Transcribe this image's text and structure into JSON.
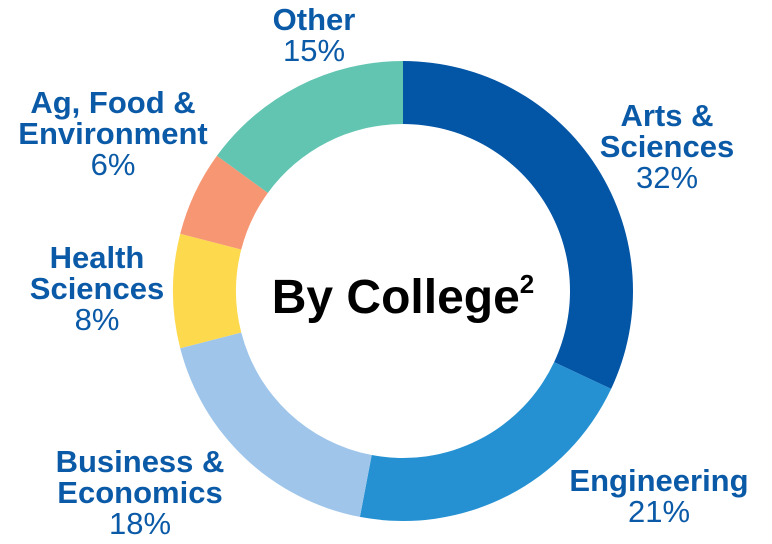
{
  "chart_data": {
    "type": "pie",
    "title": "By College",
    "title_superscript": "2",
    "donut": true,
    "start": "top, clockwise",
    "slices": [
      {
        "name_lines": [
          "Arts &",
          "Sciences"
        ],
        "value": 32,
        "label": "32%",
        "color": "#0355a6"
      },
      {
        "name_lines": [
          "Engineering"
        ],
        "value": 21,
        "label": "21%",
        "color": "#2591d2"
      },
      {
        "name_lines": [
          "Business &",
          "Economics"
        ],
        "value": 18,
        "label": "18%",
        "color": "#9fc6ea"
      },
      {
        "name_lines": [
          "Health",
          "Sciences"
        ],
        "value": 8,
        "label": "8%",
        "color": "#fdd94e"
      },
      {
        "name_lines": [
          "Ag, Food &",
          "Environment"
        ],
        "value": 6,
        "label": "6%",
        "color": "#f69672"
      },
      {
        "name_lines": [
          "Other"
        ],
        "value": 15,
        "label": "15%",
        "color": "#62c5b2"
      }
    ],
    "label_color": "#0b5aa7"
  }
}
